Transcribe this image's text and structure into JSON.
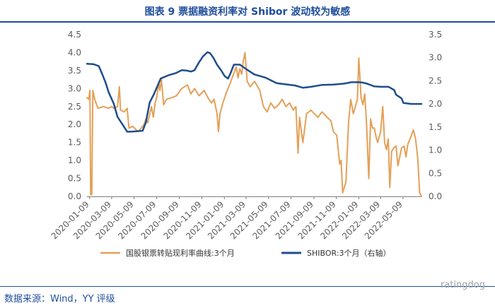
{
  "header": {
    "title": "图表 9 票据融资利率对 Shibor 波动较为敏感"
  },
  "footer": {
    "source": "数据来源：Wind，YY 评级",
    "watermark": "ratingdog"
  },
  "colors": {
    "left_series": "#e3a058",
    "right_series": "#1f4e8c",
    "title": "#1f4e9c"
  },
  "chart_data": {
    "type": "line",
    "title": "图表 9 票据融资利率对 Shibor 波动较为敏感",
    "xlabel": "",
    "ylabel": "",
    "xlim": [
      "2020-01-02",
      "2022-06-28"
    ],
    "ylim_left": [
      0,
      4.5
    ],
    "ylim_right": [
      0,
      3.5
    ],
    "yticks_left": [
      "0.0",
      "0.5",
      "1.0",
      "1.5",
      "2.0",
      "2.5",
      "3.0",
      "3.5",
      "4.0",
      "4.5"
    ],
    "yticks_right": [
      "0.0",
      "0.5",
      "1.0",
      "1.5",
      "2.0",
      "2.5",
      "3.0",
      "3.5"
    ],
    "xticks": [
      "2020-01-09",
      "2020-03-09",
      "2020-05-09",
      "2020-07-09",
      "2020-09-09",
      "2020-11-09",
      "2021-01-09",
      "2021-03-09",
      "2021-05-09",
      "2021-07-09",
      "2021-09-09",
      "2021-11-09",
      "2022-01-09",
      "2022-03-09",
      "2022-05-09"
    ],
    "grid": false,
    "legend_position": "bottom",
    "series": [
      {
        "name": "国股银票转贴现利率曲线:3个月",
        "axis": "left",
        "points": [
          [
            "2020-01-02",
            2.75
          ],
          [
            "2020-01-07",
            2.7
          ],
          [
            "2020-01-10",
            2.95
          ],
          [
            "2020-01-12",
            0.05
          ],
          [
            "2020-01-15",
            0.05
          ],
          [
            "2020-01-18",
            2.95
          ],
          [
            "2020-01-23",
            2.7
          ],
          [
            "2020-02-01",
            2.45
          ],
          [
            "2020-02-15",
            2.5
          ],
          [
            "2020-03-01",
            2.45
          ],
          [
            "2020-03-09",
            2.5
          ],
          [
            "2020-03-15",
            2.45
          ],
          [
            "2020-03-25",
            2.5
          ],
          [
            "2020-03-30",
            3.05
          ],
          [
            "2020-04-02",
            2.4
          ],
          [
            "2020-04-12",
            2.35
          ],
          [
            "2020-04-20",
            2.45
          ],
          [
            "2020-04-25",
            1.9
          ],
          [
            "2020-05-05",
            1.95
          ],
          [
            "2020-05-20",
            1.8
          ],
          [
            "2020-06-05",
            2.0
          ],
          [
            "2020-06-10",
            2.15
          ],
          [
            "2020-06-15",
            2.05
          ],
          [
            "2020-06-25",
            2.5
          ],
          [
            "2020-06-30",
            2.2
          ],
          [
            "2020-07-05",
            2.6
          ],
          [
            "2020-07-09",
            2.75
          ],
          [
            "2020-07-15",
            3.15
          ],
          [
            "2020-07-18",
            2.95
          ],
          [
            "2020-07-22",
            3.25
          ],
          [
            "2020-07-28",
            2.55
          ],
          [
            "2020-08-05",
            2.7
          ],
          [
            "2020-08-20",
            2.75
          ],
          [
            "2020-09-01",
            2.8
          ],
          [
            "2020-09-15",
            3.0
          ],
          [
            "2020-10-01",
            3.1
          ],
          [
            "2020-10-10",
            2.85
          ],
          [
            "2020-10-20",
            3.0
          ],
          [
            "2020-11-01",
            2.8
          ],
          [
            "2020-11-15",
            2.95
          ],
          [
            "2020-11-25",
            2.75
          ],
          [
            "2020-12-05",
            2.6
          ],
          [
            "2020-12-12",
            2.7
          ],
          [
            "2020-12-20",
            2.3
          ],
          [
            "2020-12-24",
            1.8
          ],
          [
            "2020-12-28",
            2.3
          ],
          [
            "2021-01-05",
            2.6
          ],
          [
            "2021-01-15",
            2.9
          ],
          [
            "2021-01-25",
            3.15
          ],
          [
            "2021-02-01",
            3.35
          ],
          [
            "2021-02-10",
            3.6
          ],
          [
            "2021-02-15",
            3.3
          ],
          [
            "2021-02-20",
            3.55
          ],
          [
            "2021-02-25",
            3.4
          ],
          [
            "2021-03-01",
            3.75
          ],
          [
            "2021-03-06",
            4.0
          ],
          [
            "2021-03-12",
            3.2
          ],
          [
            "2021-03-20",
            3.05
          ],
          [
            "2021-04-01",
            3.2
          ],
          [
            "2021-04-15",
            2.95
          ],
          [
            "2021-04-25",
            2.5
          ],
          [
            "2021-05-05",
            2.35
          ],
          [
            "2021-05-15",
            2.6
          ],
          [
            "2021-05-25",
            2.45
          ],
          [
            "2021-06-05",
            2.55
          ],
          [
            "2021-06-15",
            2.7
          ],
          [
            "2021-06-25",
            2.5
          ],
          [
            "2021-07-05",
            2.6
          ],
          [
            "2021-07-15",
            2.4
          ],
          [
            "2021-07-22",
            2.5
          ],
          [
            "2021-07-28",
            1.2
          ],
          [
            "2021-08-01",
            2.2
          ],
          [
            "2021-08-10",
            1.5
          ],
          [
            "2021-08-20",
            2.3
          ],
          [
            "2021-09-01",
            2.4
          ],
          [
            "2021-09-10",
            2.3
          ],
          [
            "2021-09-20",
            2.2
          ],
          [
            "2021-10-01",
            2.35
          ],
          [
            "2021-10-15",
            2.2
          ],
          [
            "2021-10-25",
            2.1
          ],
          [
            "2021-11-01",
            1.8
          ],
          [
            "2021-11-10",
            1.7
          ],
          [
            "2021-11-18",
            0.9
          ],
          [
            "2021-11-22",
            1.0
          ],
          [
            "2021-11-26",
            0.1
          ],
          [
            "2021-12-05",
            0.4
          ],
          [
            "2021-12-12",
            2.05
          ],
          [
            "2021-12-18",
            2.7
          ],
          [
            "2021-12-25",
            2.3
          ],
          [
            "2022-01-05",
            2.7
          ],
          [
            "2022-01-09",
            3.85
          ],
          [
            "2022-01-15",
            2.75
          ],
          [
            "2022-01-20",
            2.55
          ],
          [
            "2022-01-25",
            2.85
          ],
          [
            "2022-01-30",
            2.0
          ],
          [
            "2022-02-05",
            0.5
          ],
          [
            "2022-02-10",
            2.15
          ],
          [
            "2022-02-15",
            1.9
          ],
          [
            "2022-02-20",
            1.9
          ],
          [
            "2022-02-25",
            1.65
          ],
          [
            "2022-03-01",
            1.5
          ],
          [
            "2022-03-09",
            1.8
          ],
          [
            "2022-03-15",
            2.5
          ],
          [
            "2022-03-20",
            1.5
          ],
          [
            "2022-03-25",
            1.3
          ],
          [
            "2022-03-30",
            1.6
          ],
          [
            "2022-04-03",
            0.25
          ],
          [
            "2022-04-08",
            1.25
          ],
          [
            "2022-04-14",
            1.35
          ],
          [
            "2022-04-20",
            1.4
          ],
          [
            "2022-04-25",
            0.85
          ],
          [
            "2022-04-30",
            1.1
          ],
          [
            "2022-05-05",
            1.35
          ],
          [
            "2022-05-12",
            1.4
          ],
          [
            "2022-05-17",
            1.1
          ],
          [
            "2022-05-22",
            1.45
          ],
          [
            "2022-05-30",
            1.65
          ],
          [
            "2022-06-06",
            1.85
          ],
          [
            "2022-06-12",
            1.6
          ],
          [
            "2022-06-18",
            1.05
          ],
          [
            "2022-06-23",
            0.1
          ],
          [
            "2022-06-28",
            0.0
          ]
        ]
      },
      {
        "name": "SHIBOR:3个月（右轴）",
        "axis": "right",
        "points": [
          [
            "2020-01-02",
            2.87
          ],
          [
            "2020-01-20",
            2.86
          ],
          [
            "2020-02-03",
            2.82
          ],
          [
            "2020-02-12",
            2.65
          ],
          [
            "2020-02-22",
            2.45
          ],
          [
            "2020-03-01",
            2.25
          ],
          [
            "2020-03-15",
            2.0
          ],
          [
            "2020-03-25",
            1.72
          ],
          [
            "2020-04-08",
            1.55
          ],
          [
            "2020-04-20",
            1.4
          ],
          [
            "2020-05-01",
            1.4
          ],
          [
            "2020-06-01",
            1.42
          ],
          [
            "2020-06-10",
            1.6
          ],
          [
            "2020-06-20",
            2.03
          ],
          [
            "2020-07-01",
            2.2
          ],
          [
            "2020-07-20",
            2.55
          ],
          [
            "2020-08-10",
            2.62
          ],
          [
            "2020-08-31",
            2.67
          ],
          [
            "2020-09-15",
            2.73
          ],
          [
            "2020-09-30",
            2.72
          ],
          [
            "2020-10-10",
            2.7
          ],
          [
            "2020-10-20",
            2.73
          ],
          [
            "2020-11-01",
            2.9
          ],
          [
            "2020-11-12",
            3.03
          ],
          [
            "2020-11-24",
            3.12
          ],
          [
            "2020-12-01",
            3.1
          ],
          [
            "2020-12-10",
            3.0
          ],
          [
            "2020-12-20",
            2.85
          ],
          [
            "2020-12-31",
            2.73
          ],
          [
            "2021-01-10",
            2.6
          ],
          [
            "2021-01-19",
            2.55
          ],
          [
            "2021-01-25",
            2.65
          ],
          [
            "2021-02-04",
            2.85
          ],
          [
            "2021-02-20",
            2.85
          ],
          [
            "2021-03-10",
            2.75
          ],
          [
            "2021-03-31",
            2.64
          ],
          [
            "2021-04-30",
            2.57
          ],
          [
            "2021-05-31",
            2.45
          ],
          [
            "2021-06-30",
            2.42
          ],
          [
            "2021-07-20",
            2.4
          ],
          [
            "2021-08-10",
            2.35
          ],
          [
            "2021-08-20",
            2.36
          ],
          [
            "2021-09-01",
            2.37
          ],
          [
            "2021-09-30",
            2.41
          ],
          [
            "2021-10-31",
            2.42
          ],
          [
            "2021-11-30",
            2.44
          ],
          [
            "2021-12-20",
            2.47
          ],
          [
            "2022-01-10",
            2.47
          ],
          [
            "2022-01-20",
            2.46
          ],
          [
            "2022-01-31",
            2.44
          ],
          [
            "2022-02-10",
            2.41
          ],
          [
            "2022-02-20",
            2.38
          ],
          [
            "2022-03-10",
            2.37
          ],
          [
            "2022-03-31",
            2.37
          ],
          [
            "2022-04-15",
            2.3
          ],
          [
            "2022-04-20",
            2.2
          ],
          [
            "2022-05-05",
            2.12
          ],
          [
            "2022-05-10",
            2.02
          ],
          [
            "2022-05-31",
            2.0
          ],
          [
            "2022-06-28",
            2.0
          ]
        ]
      }
    ]
  }
}
